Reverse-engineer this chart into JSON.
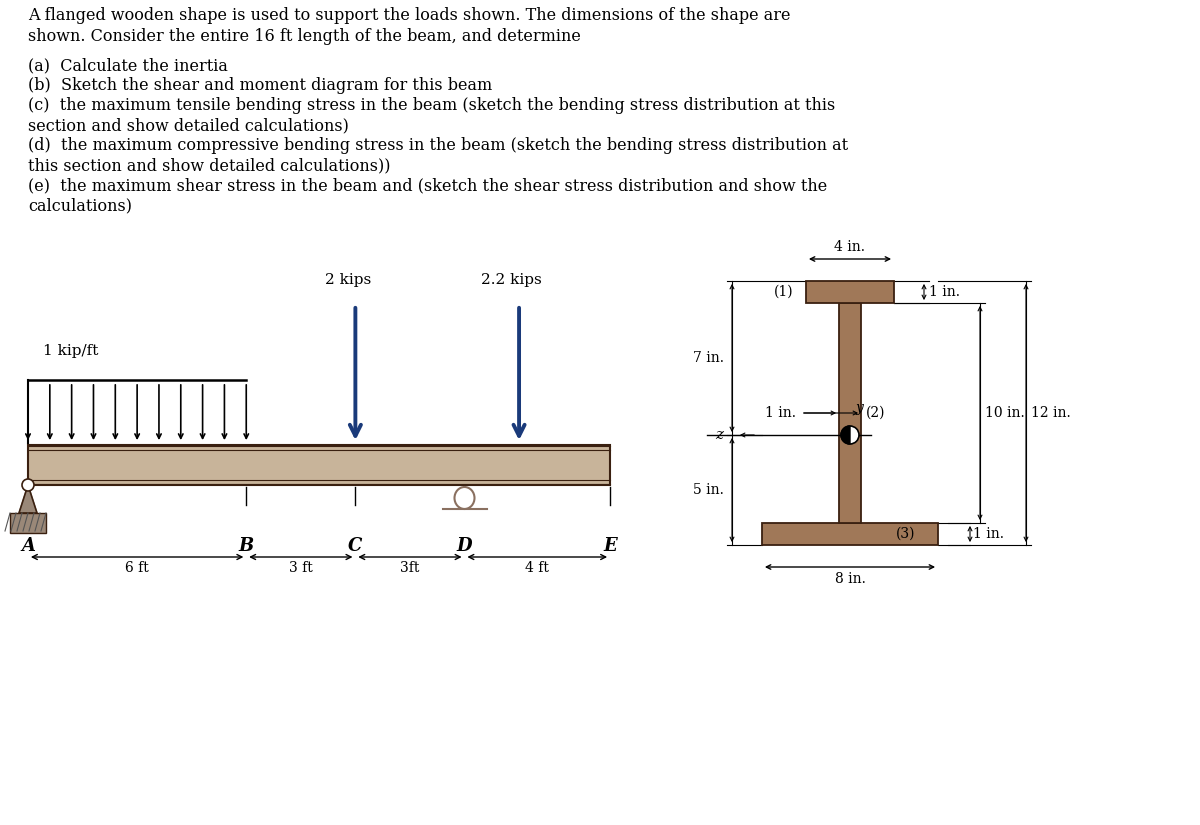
{
  "bg_color": "#ffffff",
  "beam_color": "#c8b49a",
  "beam_edge_color": "#3a2010",
  "arrow_color": "#1a3a7a",
  "support_color": "#8a7060",
  "cs_color": "#a07858",
  "cs_edge": "#3a2010",
  "title_line1": "A flanged wooden shape is used to support the loads shown. The dimensions of the shape are",
  "title_line2": "shown. Consider the entire 16 ft length of the beam, and determine",
  "q_a": "(a)  Calculate the inertia",
  "q_b": "(b)  Sketch the shear and moment diagram for this beam",
  "q_c1": "(c)  the maximum tensile bending stress in the beam (sketch the bending stress distribution at this",
  "q_c2": "section and show detailed calculations)",
  "q_d1": "(d)  the maximum compressive bending stress in the beam (sketch the bending stress distribution at",
  "q_d2": "this section and show detailed calculations))",
  "q_e1": "(e)  the maximum shear stress in the beam and (sketch the shear stress distribution and show the",
  "q_e2": "calculations)",
  "text_size": 11.5
}
